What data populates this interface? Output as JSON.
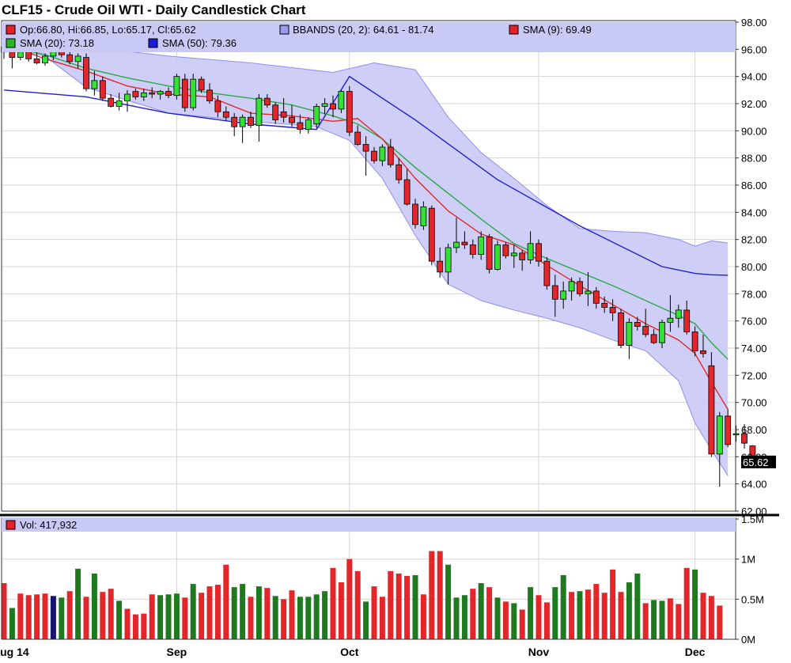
{
  "chart_data": {
    "type": "candlestick",
    "title": "CLF15 - Crude Oil WTI - Daily Candlestick Chart",
    "legend": {
      "ohlc": "Op:66.80, Hi:66.85, Lo:65.17, Cl:65.62",
      "bbands": "BBANDS (20, 2): 64.61 - 81.74",
      "sma9": "SMA (9): 69.49",
      "sma20": "SMA (20): 73.18",
      "sma50": "SMA (50): 79.36",
      "volume": "Vol: 417,932"
    },
    "last_price_label": "65.62",
    "price_ylim": [
      62,
      98
    ],
    "price_ticks": [
      "98.00",
      "96.00",
      "94.00",
      "92.00",
      "90.00",
      "88.00",
      "86.00",
      "84.00",
      "82.00",
      "80.00",
      "78.00",
      "76.00",
      "74.00",
      "72.00",
      "70.00",
      "68.00",
      "66.00",
      "64.00",
      "62.00"
    ],
    "volume_ylim": [
      0,
      1500000
    ],
    "volume_ticks": [
      "1.5M",
      "1M",
      "0.5M",
      "0M"
    ],
    "volume_tick_values": [
      1500000,
      1000000,
      500000,
      0
    ],
    "x_labels": [
      {
        "label": "Aug 14",
        "index": 0
      },
      {
        "label": "Sep",
        "index": 21
      },
      {
        "label": "Oct",
        "index": 42
      },
      {
        "label": "Nov",
        "index": 65
      },
      {
        "label": "Dec",
        "index": 84
      }
    ],
    "ohlc": [
      [
        96.2,
        96.6,
        95.3,
        95.8
      ],
      [
        95.8,
        96.2,
        94.6,
        95.4
      ],
      [
        95.4,
        96.0,
        95.2,
        95.8
      ],
      [
        95.8,
        96.0,
        95.1,
        95.3
      ],
      [
        95.3,
        95.9,
        94.9,
        95.0
      ],
      [
        95.0,
        95.7,
        94.8,
        95.5
      ],
      [
        95.5,
        96.2,
        95.2,
        96.0
      ],
      [
        96.0,
        96.4,
        95.4,
        95.6
      ],
      [
        95.6,
        95.9,
        94.9,
        95.1
      ],
      [
        95.1,
        95.7,
        94.6,
        95.5
      ],
      [
        95.4,
        95.7,
        92.9,
        93.1
      ],
      [
        93.1,
        94.4,
        92.6,
        93.7
      ],
      [
        93.7,
        94.0,
        92.2,
        92.4
      ],
      [
        92.4,
        92.7,
        91.7,
        91.8
      ],
      [
        91.8,
        92.8,
        91.5,
        92.2
      ],
      [
        92.2,
        93.0,
        91.4,
        92.7
      ],
      [
        92.9,
        93.1,
        92.3,
        92.5
      ],
      [
        92.5,
        93.1,
        92.2,
        92.8
      ],
      [
        92.8,
        93.2,
        92.4,
        92.7
      ],
      [
        92.7,
        93.0,
        92.3,
        92.9
      ],
      [
        92.9,
        93.2,
        92.4,
        92.6
      ],
      [
        92.6,
        94.2,
        92.3,
        94.0
      ],
      [
        93.8,
        94.2,
        91.4,
        91.7
      ],
      [
        91.7,
        94.2,
        91.5,
        93.8
      ],
      [
        93.8,
        94.0,
        92.8,
        93.0
      ],
      [
        93.0,
        93.5,
        92.0,
        92.2
      ],
      [
        92.2,
        92.6,
        91.0,
        91.4
      ],
      [
        91.4,
        91.8,
        90.7,
        91.0
      ],
      [
        91.0,
        91.3,
        89.6,
        90.3
      ],
      [
        90.3,
        91.2,
        89.1,
        91.0
      ],
      [
        91.0,
        91.4,
        90.2,
        90.4
      ],
      [
        90.4,
        92.7,
        89.2,
        92.4
      ],
      [
        92.4,
        92.7,
        91.7,
        91.9
      ],
      [
        91.9,
        92.1,
        90.5,
        90.8
      ],
      [
        91.4,
        92.4,
        90.6,
        91.0
      ],
      [
        91.0,
        91.9,
        90.3,
        90.6
      ],
      [
        90.6,
        91.2,
        89.8,
        90.1
      ],
      [
        90.1,
        91.0,
        89.8,
        90.8
      ],
      [
        90.5,
        92.0,
        90.2,
        91.8
      ],
      [
        91.8,
        92.4,
        91.2,
        92.0
      ],
      [
        92.0,
        92.6,
        91.0,
        91.6
      ],
      [
        91.6,
        93.0,
        91.3,
        92.9
      ],
      [
        92.9,
        93.3,
        89.6,
        89.9
      ],
      [
        89.9,
        90.4,
        88.9,
        89.0
      ],
      [
        89.0,
        89.6,
        86.7,
        88.5
      ],
      [
        88.5,
        88.8,
        87.6,
        87.8
      ],
      [
        87.8,
        89.0,
        87.4,
        88.8
      ],
      [
        88.8,
        89.4,
        87.3,
        87.5
      ],
      [
        87.5,
        88.0,
        86.1,
        86.4
      ],
      [
        86.4,
        87.2,
        84.5,
        84.6
      ],
      [
        84.6,
        85.0,
        82.8,
        83.1
      ],
      [
        83.0,
        84.8,
        82.7,
        84.4
      ],
      [
        84.3,
        84.5,
        80.1,
        80.4
      ],
      [
        80.4,
        81.4,
        79.2,
        79.6
      ],
      [
        79.6,
        81.7,
        78.7,
        81.4
      ],
      [
        81.4,
        83.6,
        81.0,
        81.8
      ],
      [
        81.8,
        82.6,
        81.3,
        81.6
      ],
      [
        81.6,
        82.0,
        80.6,
        80.9
      ],
      [
        80.9,
        82.6,
        80.5,
        82.2
      ],
      [
        82.2,
        82.4,
        79.5,
        79.8
      ],
      [
        79.8,
        81.9,
        79.7,
        81.6
      ],
      [
        81.6,
        81.8,
        80.6,
        80.8
      ],
      [
        80.8,
        81.6,
        79.9,
        81.0
      ],
      [
        81.0,
        81.2,
        79.7,
        80.5
      ],
      [
        80.5,
        82.6,
        80.2,
        81.7
      ],
      [
        81.7,
        82.0,
        80.0,
        80.4
      ],
      [
        80.4,
        80.7,
        78.3,
        78.6
      ],
      [
        78.6,
        79.4,
        76.3,
        77.6
      ],
      [
        77.6,
        78.9,
        76.9,
        78.2
      ],
      [
        78.2,
        79.2,
        77.5,
        78.9
      ],
      [
        78.9,
        79.2,
        77.8,
        78.0
      ],
      [
        78.0,
        79.6,
        77.1,
        78.2
      ],
      [
        78.2,
        78.5,
        76.9,
        77.3
      ],
      [
        77.3,
        77.8,
        76.6,
        77.0
      ],
      [
        77.0,
        77.6,
        76.0,
        76.6
      ],
      [
        76.6,
        76.9,
        74.0,
        74.2
      ],
      [
        74.2,
        76.2,
        73.2,
        75.9
      ],
      [
        75.9,
        76.3,
        75.3,
        75.6
      ],
      [
        75.6,
        76.9,
        74.8,
        75.0
      ],
      [
        75.0,
        75.4,
        74.3,
        74.4
      ],
      [
        74.4,
        76.1,
        74.0,
        75.9
      ],
      [
        75.9,
        77.9,
        75.2,
        76.2
      ],
      [
        76.2,
        77.2,
        75.5,
        76.8
      ],
      [
        76.8,
        77.5,
        75.0,
        75.2
      ],
      [
        75.2,
        75.6,
        73.4,
        73.8
      ],
      [
        73.8,
        75.0,
        73.3,
        73.6
      ],
      [
        72.7,
        73.7,
        66.0,
        66.2
      ],
      [
        66.2,
        69.3,
        63.8,
        69.0
      ],
      [
        69.0,
        69.5,
        66.7,
        66.9
      ],
      [
        67.7,
        68.3,
        67.1,
        67.7
      ],
      [
        67.7,
        68.4,
        66.6,
        67.0
      ],
      [
        66.8,
        66.85,
        65.17,
        65.62
      ]
    ],
    "volume": [
      700000,
      390000,
      570000,
      550000,
      560000,
      570000,
      540000,
      520000,
      600000,
      880000,
      530000,
      820000,
      590000,
      630000,
      480000,
      380000,
      310000,
      320000,
      560000,
      550000,
      560000,
      570000,
      520000,
      690000,
      580000,
      660000,
      680000,
      930000,
      650000,
      690000,
      530000,
      660000,
      640000,
      540000,
      500000,
      610000,
      530000,
      530000,
      560000,
      600000,
      890000,
      710000,
      1000000,
      850000,
      470000,
      660000,
      530000,
      850000,
      820000,
      790000,
      800000,
      560000,
      1100000,
      1100000,
      930000,
      520000,
      550000,
      630000,
      700000,
      650000,
      520000,
      470000,
      450000,
      370000,
      650000,
      550000,
      460000,
      650000,
      800000,
      590000,
      600000,
      620000,
      690000,
      580000,
      870000,
      590000,
      710000,
      820000,
      450000,
      490000,
      480000,
      510000,
      440000,
      890000,
      870000,
      580000,
      540000,
      420000
    ],
    "volume_colors": [
      "r",
      "g",
      "r",
      "r",
      "r",
      "r",
      "b",
      "g",
      "r",
      "g",
      "r",
      "g",
      "r",
      "r",
      "g",
      "r",
      "r",
      "r",
      "r",
      "g",
      "g",
      "g",
      "r",
      "g",
      "r",
      "r",
      "r",
      "r",
      "g",
      "g",
      "r",
      "g",
      "r",
      "g",
      "r",
      "r",
      "g",
      "g",
      "g",
      "g",
      "r",
      "r",
      "r",
      "r",
      "g",
      "r",
      "r",
      "r",
      "r",
      "r",
      "g",
      "r",
      "r",
      "r",
      "g",
      "g",
      "g",
      "r",
      "g",
      "r",
      "g",
      "r",
      "g",
      "r",
      "g",
      "r",
      "r",
      "g",
      "g",
      "r",
      "g",
      "r",
      "r",
      "r",
      "r",
      "r",
      "g",
      "g",
      "r",
      "g",
      "g",
      "r",
      "r",
      "r",
      "g",
      "r",
      "r",
      "r"
    ],
    "sma50": [
      [
        0,
        93.0
      ],
      [
        10,
        92.5
      ],
      [
        20,
        91.3
      ],
      [
        30,
        90.5
      ],
      [
        38,
        90.1
      ],
      [
        42,
        94.0
      ],
      [
        50,
        90.8
      ],
      [
        60,
        86.4
      ],
      [
        70,
        83.0
      ],
      [
        80,
        80.0
      ],
      [
        84,
        79.5
      ],
      [
        86,
        79.4
      ],
      [
        88,
        79.36
      ]
    ],
    "bb_upper": [
      [
        0,
        97.8
      ],
      [
        10,
        96.2
      ],
      [
        20,
        95.5
      ],
      [
        30,
        95.0
      ],
      [
        40,
        94.3
      ],
      [
        45,
        95.0
      ],
      [
        50,
        94.5
      ],
      [
        54,
        91.0
      ],
      [
        58,
        88.4
      ],
      [
        62,
        86.5
      ],
      [
        66,
        84.5
      ],
      [
        70,
        82.8
      ],
      [
        74,
        82.6
      ],
      [
        78,
        82.5
      ],
      [
        82,
        82.0
      ],
      [
        84,
        81.5
      ],
      [
        86,
        81.9
      ],
      [
        88,
        81.74
      ]
    ],
    "bb_lower": [
      [
        0,
        96.2
      ],
      [
        5,
        95.5
      ],
      [
        10,
        93.2
      ],
      [
        20,
        91.3
      ],
      [
        30,
        90.7
      ],
      [
        38,
        90.3
      ],
      [
        42,
        89.3
      ],
      [
        46,
        86.5
      ],
      [
        50,
        82.3
      ],
      [
        54,
        78.7
      ],
      [
        58,
        77.5
      ],
      [
        62,
        76.8
      ],
      [
        66,
        76.2
      ],
      [
        70,
        75.5
      ],
      [
        74,
        74.6
      ],
      [
        78,
        73.8
      ],
      [
        82,
        71.6
      ],
      [
        84,
        68.5
      ],
      [
        86,
        66.5
      ],
      [
        88,
        64.61
      ]
    ],
    "sma20": [
      [
        0,
        96.3
      ],
      [
        5,
        95.6
      ],
      [
        10,
        94.6
      ],
      [
        15,
        93.9
      ],
      [
        20,
        93.3
      ],
      [
        25,
        92.8
      ],
      [
        30,
        92.4
      ],
      [
        35,
        91.9
      ],
      [
        40,
        91.1
      ],
      [
        43,
        90.5
      ],
      [
        46,
        89.4
      ],
      [
        50,
        87.3
      ],
      [
        54,
        85.4
      ],
      [
        58,
        83.5
      ],
      [
        62,
        81.7
      ],
      [
        66,
        80.6
      ],
      [
        70,
        79.6
      ],
      [
        74,
        78.6
      ],
      [
        78,
        77.5
      ],
      [
        82,
        76.4
      ],
      [
        84,
        75.8
      ],
      [
        86,
        74.4
      ],
      [
        88,
        73.18
      ]
    ],
    "sma9": [
      [
        0,
        96.4
      ],
      [
        5,
        95.3
      ],
      [
        10,
        94.4
      ],
      [
        15,
        93.3
      ],
      [
        20,
        92.7
      ],
      [
        25,
        92.5
      ],
      [
        30,
        91.3
      ],
      [
        35,
        91.1
      ],
      [
        40,
        90.7
      ],
      [
        43,
        90.9
      ],
      [
        46,
        89.4
      ],
      [
        50,
        86.5
      ],
      [
        54,
        84.1
      ],
      [
        58,
        82.4
      ],
      [
        62,
        81.6
      ],
      [
        66,
        80.1
      ],
      [
        70,
        78.6
      ],
      [
        74,
        77.2
      ],
      [
        78,
        75.8
      ],
      [
        82,
        74.6
      ],
      [
        84,
        73.6
      ],
      [
        86,
        71.5
      ],
      [
        88,
        69.49
      ]
    ]
  }
}
